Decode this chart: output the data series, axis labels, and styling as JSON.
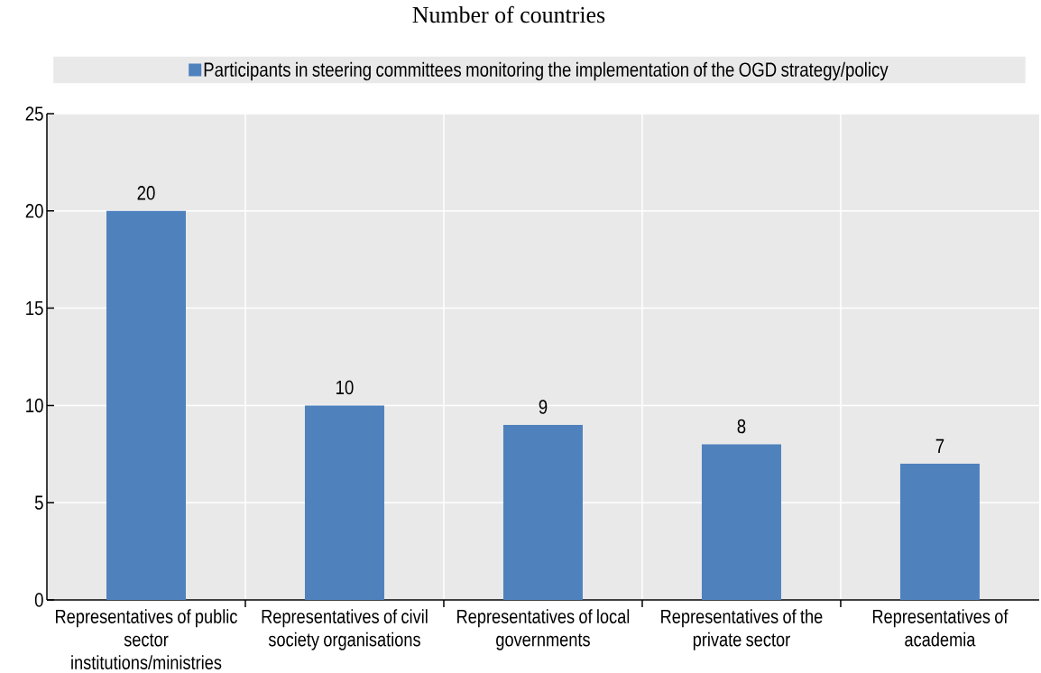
{
  "chart_data": {
    "type": "bar",
    "title": "Number of countries",
    "categories": [
      "Representatives of public sector institutions/ministries",
      "Representatives of civil society organisations",
      "Representatives of local governments",
      "Representatives of the private sector",
      "Representatives of academia"
    ],
    "series": [
      {
        "name": "Participants in steering committees monitoring the implementation of the OGD strategy/policy",
        "color": "#4f81bd",
        "values": [
          20,
          10,
          9,
          8,
          7
        ]
      }
    ],
    "ylim": [
      0,
      25
    ],
    "yticks": [
      0,
      5,
      10,
      15,
      20,
      25
    ],
    "grid": true,
    "legend": "top",
    "data_labels": true
  }
}
